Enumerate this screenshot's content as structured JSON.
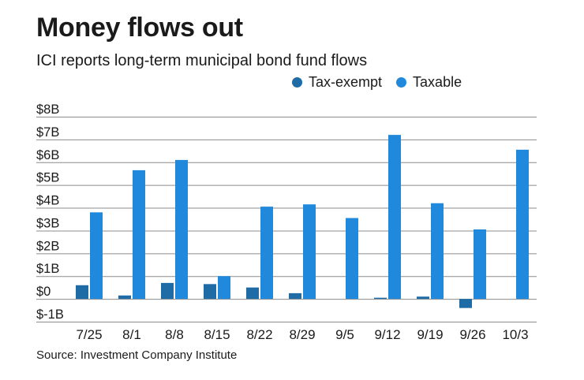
{
  "chart_data": {
    "type": "bar",
    "title": "Money flows out",
    "subtitle": "ICI reports long-term municipal bond fund flows",
    "categories": [
      "7/25",
      "8/1",
      "8/8",
      "8/15",
      "8/22",
      "8/29",
      "9/5",
      "9/12",
      "9/19",
      "9/26",
      "10/3"
    ],
    "series": [
      {
        "name": "Tax-exempt",
        "color": "#1f6ba5",
        "values": [
          0.6,
          0.15,
          0.7,
          0.65,
          0.5,
          0.25,
          0.0,
          0.05,
          0.1,
          -0.4,
          0.0
        ]
      },
      {
        "name": "Taxable",
        "color": "#2189db",
        "values": [
          3.8,
          5.65,
          6.1,
          1.0,
          4.05,
          4.15,
          3.55,
          7.2,
          4.2,
          3.05,
          6.55
        ]
      }
    ],
    "yticks": [
      "$8B",
      "$7B",
      "$6B",
      "$5B",
      "$4B",
      "$3B",
      "$2B",
      "$1B",
      "$0",
      "$-1B"
    ],
    "ylim": [
      -1,
      8
    ],
    "xlabel": "",
    "ylabel": "",
    "legend_position": "top-right",
    "grid": true
  },
  "source": "Source: Investment Company Institute"
}
